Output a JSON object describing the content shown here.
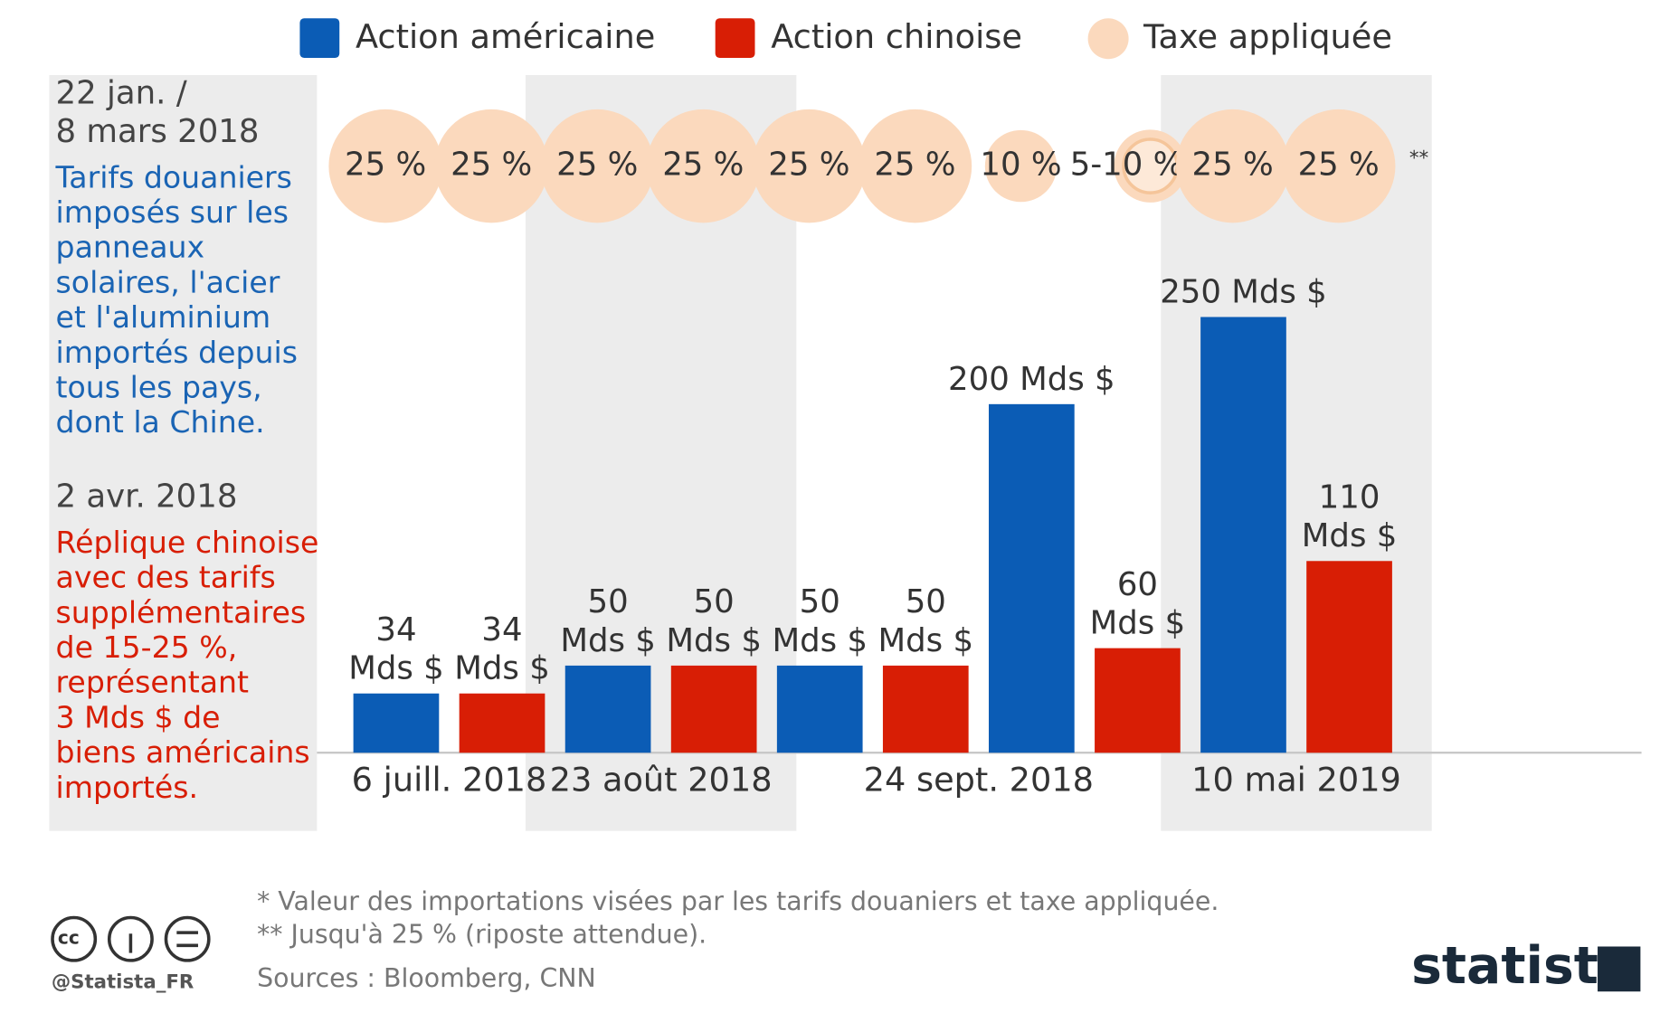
{
  "chart_data": {
    "type": "bar",
    "series": [
      {
        "name": "Action américaine",
        "color": "#0b5cb5"
      },
      {
        "name": "Action chinoise",
        "color": "#d81e05"
      }
    ],
    "tax_legend": "Taxe appliquée",
    "tax_color": "#fbd9bd",
    "ylim": [
      0,
      250
    ],
    "groups": [
      {
        "label": "6 juill. 2018",
        "bars": [
          {
            "series": "Action américaine",
            "value": 34,
            "value_label": [
              "34",
              "Mds $"
            ],
            "tax": 25,
            "tax_label": "25 %"
          },
          {
            "series": "Action chinoise",
            "value": 34,
            "value_label": [
              "34",
              "Mds $"
            ],
            "tax": 25,
            "tax_label": "25 %"
          }
        ]
      },
      {
        "label": "23 août 2018",
        "bars": [
          {
            "series": "Action américaine",
            "value": 50,
            "value_label": [
              "50",
              "Mds $"
            ],
            "tax": 25,
            "tax_label": "25 %"
          },
          {
            "series": "Action chinoise",
            "value": 50,
            "value_label": [
              "50",
              "Mds $"
            ],
            "tax": 25,
            "tax_label": "25 %"
          }
        ]
      },
      {
        "label": "24 sept. 2018",
        "bars": [
          {
            "series": "Action américaine",
            "value": 50,
            "value_label": [
              "50",
              "Mds $"
            ],
            "tax": 25,
            "tax_label": "25 %"
          },
          {
            "series": "Action chinoise",
            "value": 50,
            "value_label": [
              "50",
              "Mds $"
            ],
            "tax": 25,
            "tax_label": "25 %"
          },
          {
            "series": "Action américaine",
            "value": 200,
            "value_label": [
              "200 Mds $"
            ],
            "tax": 10,
            "tax_label": "10 %"
          },
          {
            "series": "Action chinoise",
            "value": 60,
            "value_label": [
              "60",
              "Mds $"
            ],
            "tax": null,
            "tax_label": "5-10 %"
          }
        ]
      },
      {
        "label": "10 mai 2019",
        "bars": [
          {
            "series": "Action américaine",
            "value": 250,
            "value_label": [
              "250 Mds $"
            ],
            "tax": 25,
            "tax_label": "25 %"
          },
          {
            "series": "Action chinoise",
            "value": 110,
            "value_label": [
              "110",
              "Mds $"
            ],
            "tax": 25,
            "tax_label": "25 %",
            "tax_note": "**"
          }
        ]
      }
    ],
    "side_panel": {
      "first_date": [
        "22 jan. /",
        "8 mars 2018"
      ],
      "first_text": [
        "Tarifs douaniers",
        "imposés sur les",
        "panneaux",
        "solaires, l'acier",
        "et l'aluminium",
        "importés depuis",
        "tous les pays,",
        "dont la Chine."
      ],
      "second_date": "2 avr. 2018",
      "second_text": [
        "Réplique chinoise",
        "avec des tarifs",
        "supplémentaires",
        "de 15-25 %,",
        "représentant",
        "3 Mds $ de",
        "biens américains",
        "importés."
      ]
    },
    "footnotes": [
      "*  Valeur des importations visées par les tarifs douaniers et taxe appliquée.",
      "** Jusqu'à 25 % (riposte attendue)."
    ],
    "source": "Sources : Bloomberg, CNN",
    "handle": "@Statista_FR",
    "brand": "statista"
  }
}
